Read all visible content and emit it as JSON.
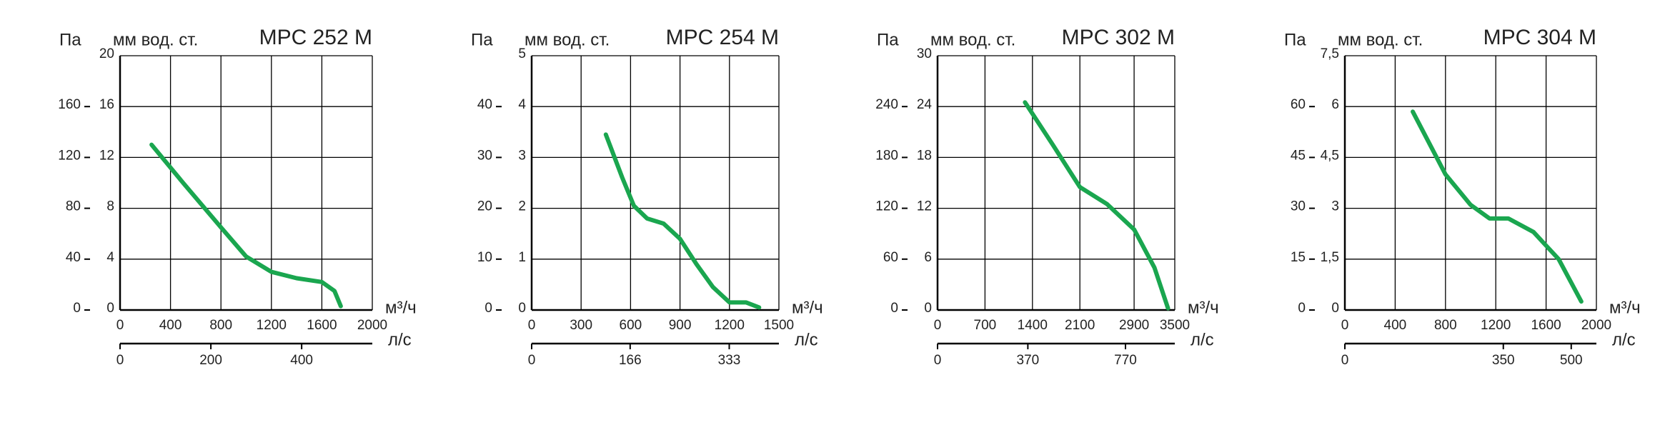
{
  "chart_data": [
    {
      "type": "line",
      "title": "MPC 252 M",
      "ylabel": "мм вод. ст.",
      "y2label": "Па",
      "xlabel": "м³/ч",
      "x2label": "л/с",
      "x": [
        250,
        500,
        800,
        1000,
        1200,
        1400,
        1600,
        1700,
        1750
      ],
      "series": [
        {
          "color": "#1aa64f",
          "values": [
            13,
            10,
            6.5,
            4.2,
            3,
            2.5,
            2.2,
            1.5,
            0.3
          ]
        }
      ],
      "xlim": [
        0,
        2000
      ],
      "xticks": [
        0,
        400,
        800,
        1200,
        1600,
        2000
      ],
      "ylim": [
        0,
        20
      ],
      "yticks": [
        0,
        4,
        8,
        12,
        16,
        20
      ],
      "y2lim": [
        0,
        200
      ],
      "y2ticks": [
        0,
        40,
        80,
        120,
        160
      ],
      "x2lim": [
        0,
        555.6
      ],
      "x2ticks": [
        0,
        200,
        400
      ],
      "grid": true
    },
    {
      "type": "line",
      "title": "MPC 254 M",
      "ylabel": "мм вод. ст.",
      "y2label": "Па",
      "xlabel": "м³/ч",
      "x2label": "л/с",
      "x": [
        450,
        550,
        620,
        700,
        800,
        900,
        1000,
        1100,
        1200,
        1300,
        1380
      ],
      "series": [
        {
          "color": "#1aa64f",
          "values": [
            3.45,
            2.6,
            2.05,
            1.8,
            1.7,
            1.4,
            0.9,
            0.45,
            0.15,
            0.15,
            0.05
          ]
        }
      ],
      "xlim": [
        0,
        1500
      ],
      "xticks": [
        0,
        300,
        600,
        900,
        1200,
        1500
      ],
      "ylim": [
        0,
        5
      ],
      "yticks": [
        0,
        1,
        2,
        3,
        4,
        5
      ],
      "y2lim": [
        0,
        50
      ],
      "y2ticks": [
        0,
        10,
        20,
        30,
        40
      ],
      "x2lim": [
        0,
        416.7
      ],
      "x2ticks": [
        0,
        166,
        333
      ],
      "grid": true
    },
    {
      "type": "line",
      "title": "MPC 302 M",
      "ylabel": "мм вод. ст.",
      "y2label": "Па",
      "xlabel": "м³/ч",
      "x2label": "л/с",
      "x": [
        1290,
        1700,
        2100,
        2500,
        2900,
        3200,
        3400
      ],
      "series": [
        {
          "color": "#1aa64f",
          "values": [
            24.5,
            19.5,
            14.5,
            12.5,
            9.5,
            5,
            0.2
          ]
        }
      ],
      "xlim": [
        0,
        3500
      ],
      "xticks": [
        0,
        700,
        1400,
        2100,
        2900,
        3500
      ],
      "ylim": [
        0,
        30
      ],
      "yticks": [
        0,
        6,
        12,
        18,
        24,
        30
      ],
      "y2lim": [
        0,
        300
      ],
      "y2ticks": [
        0,
        60,
        120,
        180,
        240
      ],
      "x2lim": [
        0,
        972
      ],
      "x2ticks": [
        0,
        370,
        770
      ],
      "grid": true
    },
    {
      "type": "line",
      "title": "MPC 304 M",
      "ylabel": "мм вод. ст.",
      "y2label": "Па",
      "xlabel": "м³/ч",
      "x2label": "л/с",
      "x": [
        540,
        800,
        1000,
        1150,
        1300,
        1500,
        1700,
        1880
      ],
      "series": [
        {
          "color": "#1aa64f",
          "values": [
            5.85,
            4,
            3.1,
            2.7,
            2.7,
            2.3,
            1.5,
            0.25
          ]
        }
      ],
      "xlim": [
        0,
        2000
      ],
      "xticks": [
        0,
        400,
        800,
        1200,
        1600,
        2000
      ],
      "ylim": [
        0,
        7.5
      ],
      "yticks": [
        0,
        {
          "value": 1.5,
          "label": "1,5"
        },
        3,
        {
          "value": 4.5,
          "label": "4,5"
        },
        6,
        {
          "value": 7.5,
          "label": "7,5"
        }
      ],
      "y2lim": [
        0,
        75
      ],
      "y2ticks": [
        0,
        15,
        30,
        45,
        60
      ],
      "x2lim": [
        0,
        555.6
      ],
      "x2ticks": [
        0,
        350,
        500
      ],
      "grid": true
    }
  ]
}
